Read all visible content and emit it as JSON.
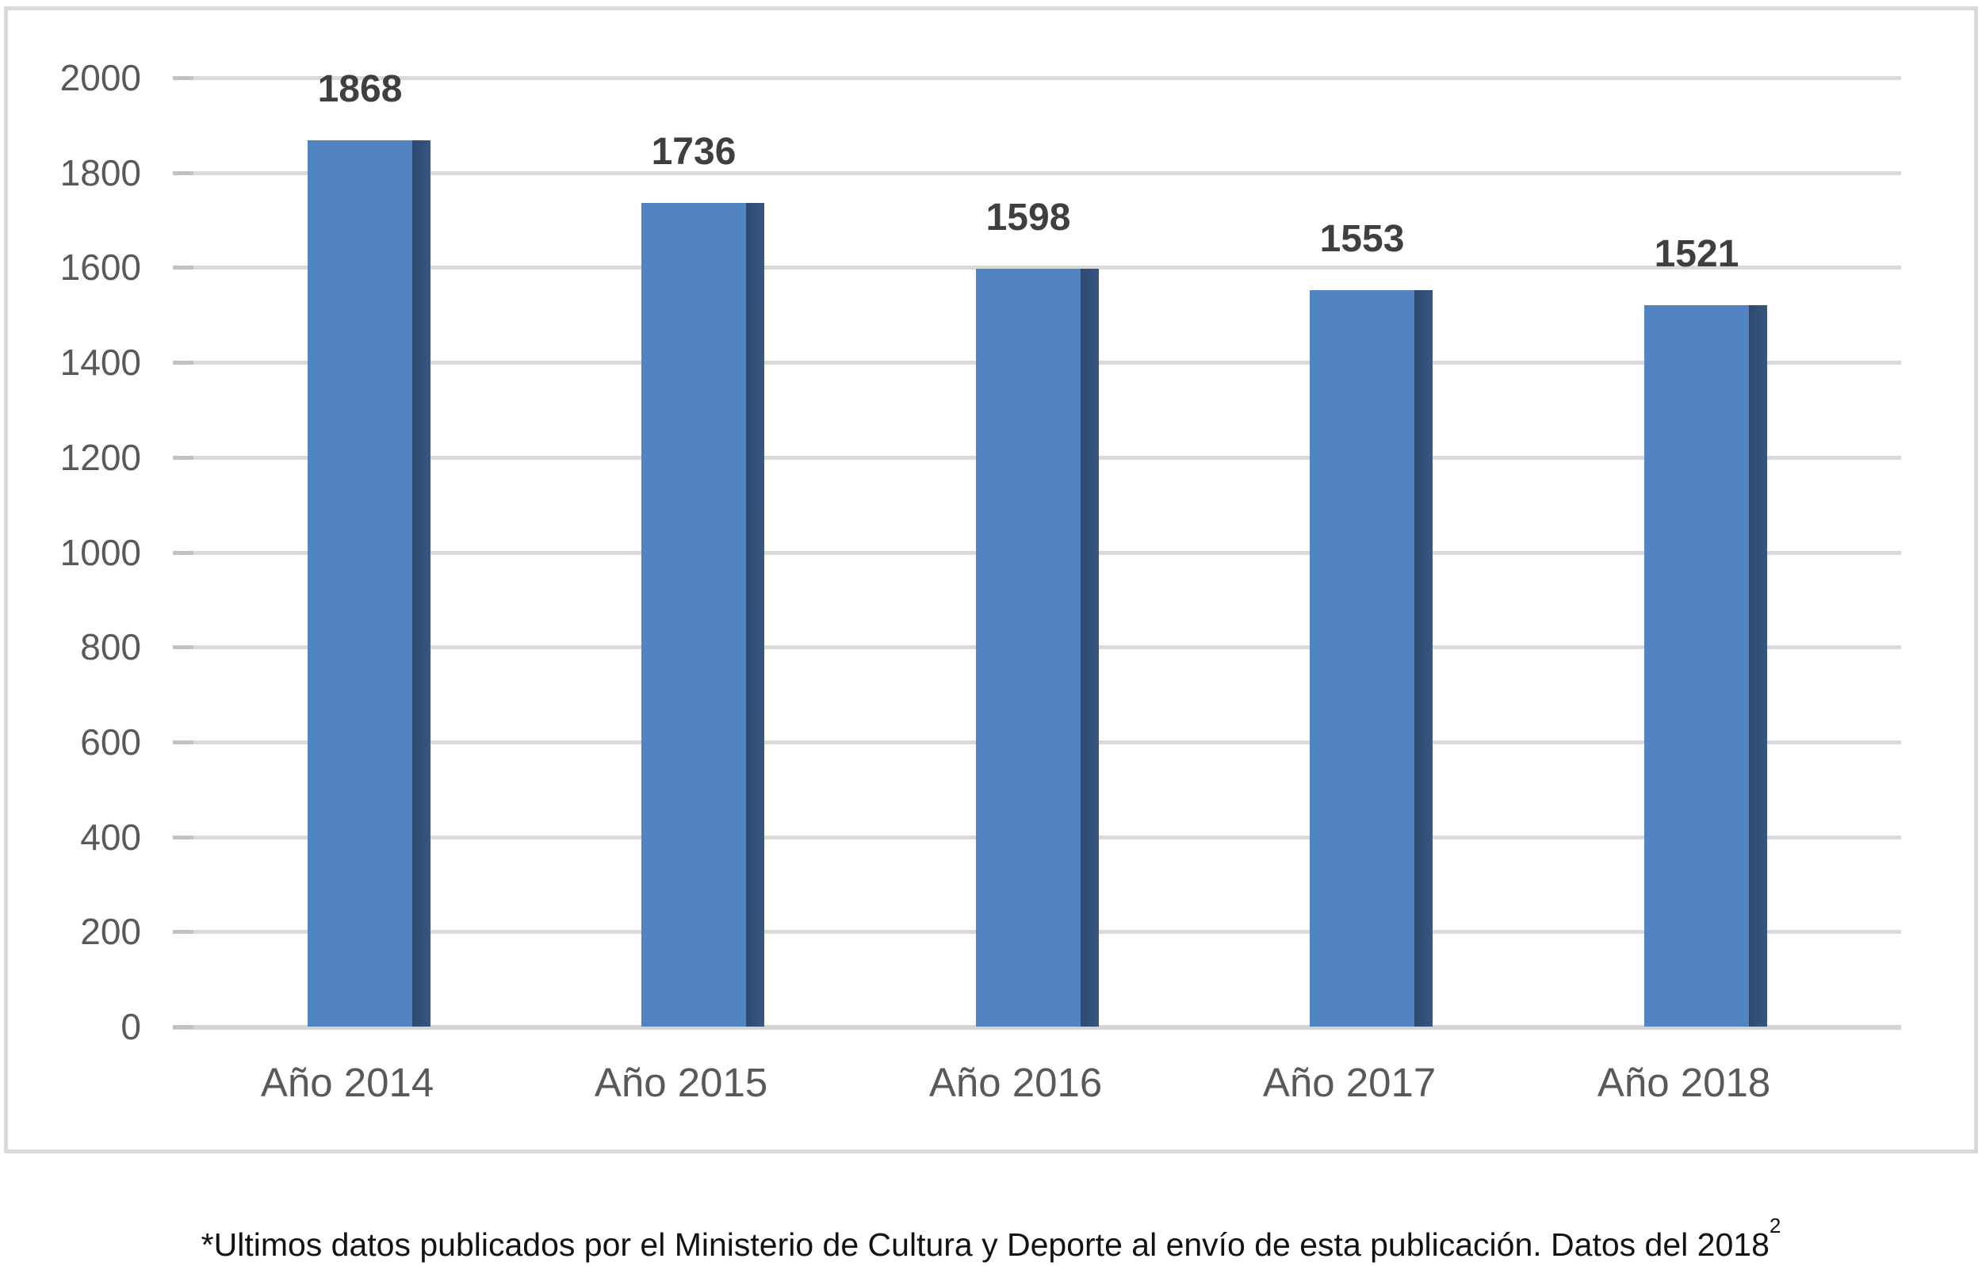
{
  "chart_data": {
    "type": "bar",
    "title": "",
    "categories": [
      "Año 2014",
      "Año 2015",
      "Año 2016",
      "Año 2017",
      "Año 2018"
    ],
    "values": [
      1868,
      1736,
      1598,
      1553,
      1521
    ],
    "data_labels": [
      "1868",
      "1736",
      "1598",
      "1553",
      "1521"
    ],
    "xlabel": "",
    "ylabel": "",
    "ylim": [
      0,
      2000
    ],
    "ytick_step": 200,
    "ytick_labels": [
      "0",
      "200",
      "400",
      "600",
      "800",
      "1000",
      "1200",
      "1400",
      "1600",
      "1800",
      "2000"
    ],
    "grid": true,
    "legend": false,
    "bar_style": "3d-column",
    "bar_face_color": "#5283C3",
    "bar_side_color": "#33517A",
    "gridline_color": "#D9D9D9",
    "axis_label_color": "#595959",
    "data_label_color": "#3F3F3F"
  },
  "footnote": {
    "text": "*Ultimos datos publicados por el Ministerio de Cultura y Deporte al envío de esta publicación. Datos del 2018",
    "superscript": "2"
  }
}
